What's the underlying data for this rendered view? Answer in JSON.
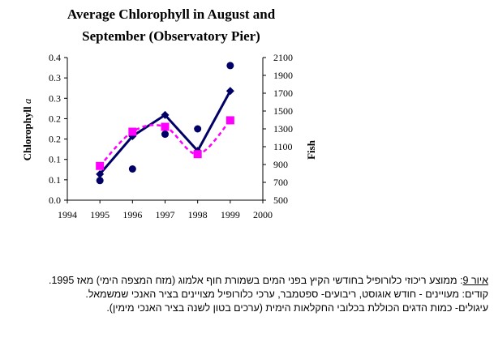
{
  "chart_data": {
    "type": "line",
    "title_lines": [
      "Average Chlorophyll in August and",
      "September (Observatory Pier)"
    ],
    "ylabel_left": "Chlorophyll",
    "ylabel_left_italic": "a",
    "ylabel_right": "Fish",
    "x_ticks": [
      "1994",
      "1995",
      "1996",
      "1997",
      "1998",
      "1999",
      "2000"
    ],
    "y_left_ticks": [
      "0.0",
      "0.1",
      "0.1",
      "0.2",
      "0.2",
      "0.3",
      "0.3",
      "0.4"
    ],
    "y_right_ticks": [
      "500",
      "700",
      "900",
      "1100",
      "1300",
      "1500",
      "1700",
      "1900",
      "2100"
    ],
    "xlim": [
      1994,
      2000
    ],
    "ylim_left": [
      0,
      0.35
    ],
    "ylim_right": [
      500,
      2100
    ],
    "grid": false,
    "legend": "none",
    "series": [
      {
        "axis": "left",
        "style": "solid-line-diamond",
        "color": "#000066",
        "x": [
          1995,
          1996,
          1997,
          1998,
          1999
        ],
        "y": [
          0.064,
          0.157,
          0.209,
          0.121,
          0.268
        ]
      },
      {
        "axis": "left",
        "style": "dashed-line-square",
        "color": "#ff00ff",
        "x": [
          1995,
          1996,
          1997,
          1998,
          1999
        ],
        "y": [
          0.084,
          0.168,
          0.18,
          0.113,
          0.196
        ]
      },
      {
        "axis": "right",
        "style": "marker-circle",
        "color": "#000066",
        "x": [
          1995,
          1996,
          1997,
          1998,
          1999
        ],
        "y": [
          720,
          850,
          1240,
          1300,
          2010
        ]
      }
    ]
  },
  "caption": {
    "label": "איור 9",
    "line1": ": ממוצע ריכוזי כלורופיל בחודשי הקיץ בפני המים בשמורת חוף אלמוג (מזח המצפה הימי) מאז 1995.",
    "line2": "קודים: מעויינים - חודש אוגוסט, ריבועים- ספטמבר, ערכי כלורופיל מצויינים בציר האנכי שמשמאל.",
    "line3": "עיגולים-  כמות הדגים הכוללת בכלובי החקלאות הימית (ערכים בטון לשנה בציר האנכי מימין)."
  }
}
